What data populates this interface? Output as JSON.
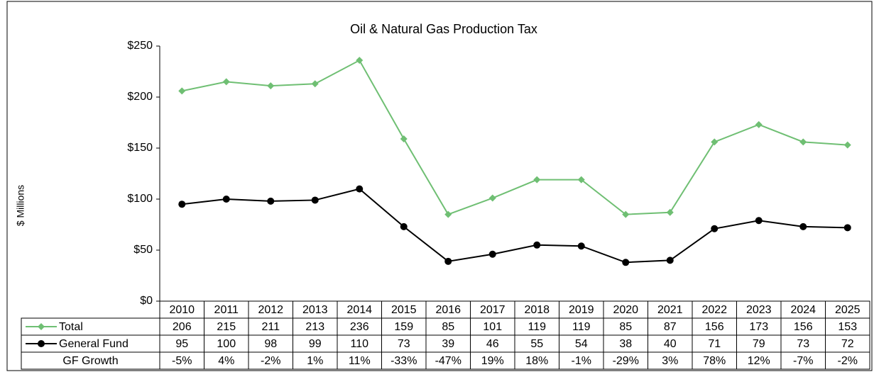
{
  "chart_data": {
    "type": "line",
    "title": "Oil & Natural Gas Production Tax",
    "y_label": "$ Millions",
    "categories": [
      "2010",
      "2011",
      "2012",
      "2013",
      "2014",
      "2015",
      "2016",
      "2017",
      "2018",
      "2019",
      "2020",
      "2021",
      "2022",
      "2023",
      "2024",
      "2025"
    ],
    "series": [
      {
        "name": "Total",
        "color": "#6fbf73",
        "marker": "diamond",
        "values": [
          206,
          215,
          211,
          213,
          236,
          159,
          85,
          101,
          119,
          119,
          85,
          87,
          156,
          173,
          156,
          153
        ]
      },
      {
        "name": "General Fund",
        "color": "#000000",
        "marker": "circle",
        "values": [
          95,
          100,
          98,
          99,
          110,
          73,
          39,
          46,
          55,
          54,
          38,
          40,
          71,
          79,
          73,
          72
        ]
      }
    ],
    "growth": {
      "name": "GF Growth",
      "values": [
        -5,
        4,
        -2,
        1,
        11,
        -33,
        -47,
        19,
        18,
        -1,
        -29,
        3,
        78,
        12,
        -7,
        -2
      ],
      "value_labels": [
        "-5%",
        "4%",
        "-2%",
        "1%",
        "11%",
        "-33%",
        "-47%",
        "19%",
        "18%",
        "-1%",
        "-29%",
        "3%",
        "78%",
        "12%",
        "-7%",
        "-2%"
      ]
    },
    "ylim": [
      0,
      250
    ],
    "yticks": [
      {
        "value": 0,
        "label": "$0"
      },
      {
        "value": 50,
        "label": "$50"
      },
      {
        "value": 100,
        "label": "$100"
      },
      {
        "value": 150,
        "label": "$150"
      },
      {
        "value": 200,
        "label": "$200"
      },
      {
        "value": 250,
        "label": "$250"
      }
    ],
    "grid": false
  }
}
